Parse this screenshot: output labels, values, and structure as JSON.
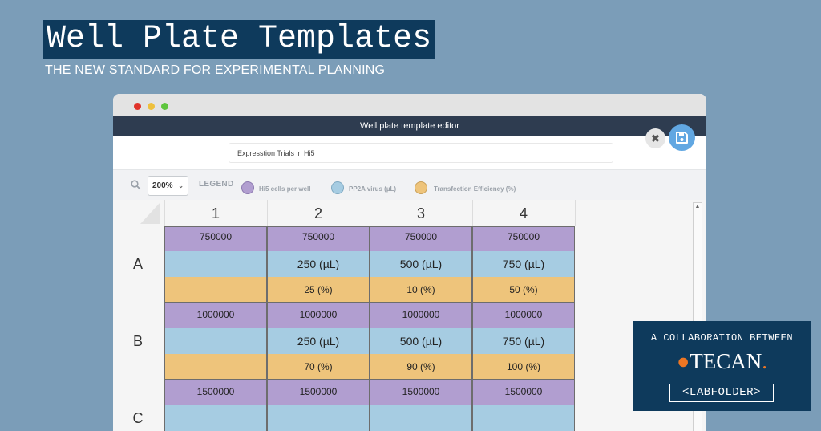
{
  "banner": {
    "title": "Well Plate Templates",
    "subtitle": "THE NEW STANDARD FOR EXPERIMENTAL PLANNING"
  },
  "window": {
    "title": "Well plate template editor",
    "template_name": "Expresstion Trials in Hi5"
  },
  "toolbar": {
    "zoom": "200%",
    "legend_label": "LEGEND",
    "legend": [
      {
        "label": "Hi5 cells per well",
        "color": "#b19ed0"
      },
      {
        "label": "PP2A virus (µL)",
        "color": "#a6cce2"
      },
      {
        "label": "Transfection Efficiency (%)",
        "color": "#eec47b"
      }
    ]
  },
  "plate": {
    "columns": [
      "1",
      "2",
      "3",
      "4"
    ],
    "rows": [
      {
        "label": "A",
        "cells": [
          {
            "cells": "750000",
            "virus": "",
            "efficiency": ""
          },
          {
            "cells": "750000",
            "virus": "250 (µL)",
            "efficiency": "25 (%)"
          },
          {
            "cells": "750000",
            "virus": "500 (µL)",
            "efficiency": "10 (%)"
          },
          {
            "cells": "750000",
            "virus": "750 (µL)",
            "efficiency": "50 (%)"
          }
        ]
      },
      {
        "label": "B",
        "cells": [
          {
            "cells": "1000000",
            "virus": "",
            "efficiency": ""
          },
          {
            "cells": "1000000",
            "virus": "250 (µL)",
            "efficiency": "70 (%)"
          },
          {
            "cells": "1000000",
            "virus": "500 (µL)",
            "efficiency": "90 (%)"
          },
          {
            "cells": "1000000",
            "virus": "750 (µL)",
            "efficiency": "100 (%)"
          }
        ]
      },
      {
        "label": "C",
        "cells": [
          {
            "cells": "1500000"
          },
          {
            "cells": "1500000"
          },
          {
            "cells": "1500000"
          },
          {
            "cells": "1500000"
          }
        ]
      }
    ]
  },
  "collaboration": {
    "title": "A COLLABORATION BETWEEN",
    "logo1": "TECAN",
    "logo2": "<LABFOLDER>"
  },
  "icons": {
    "zoom": "magnifier-icon",
    "close": "close-icon",
    "save": "floppy-disk-icon"
  }
}
